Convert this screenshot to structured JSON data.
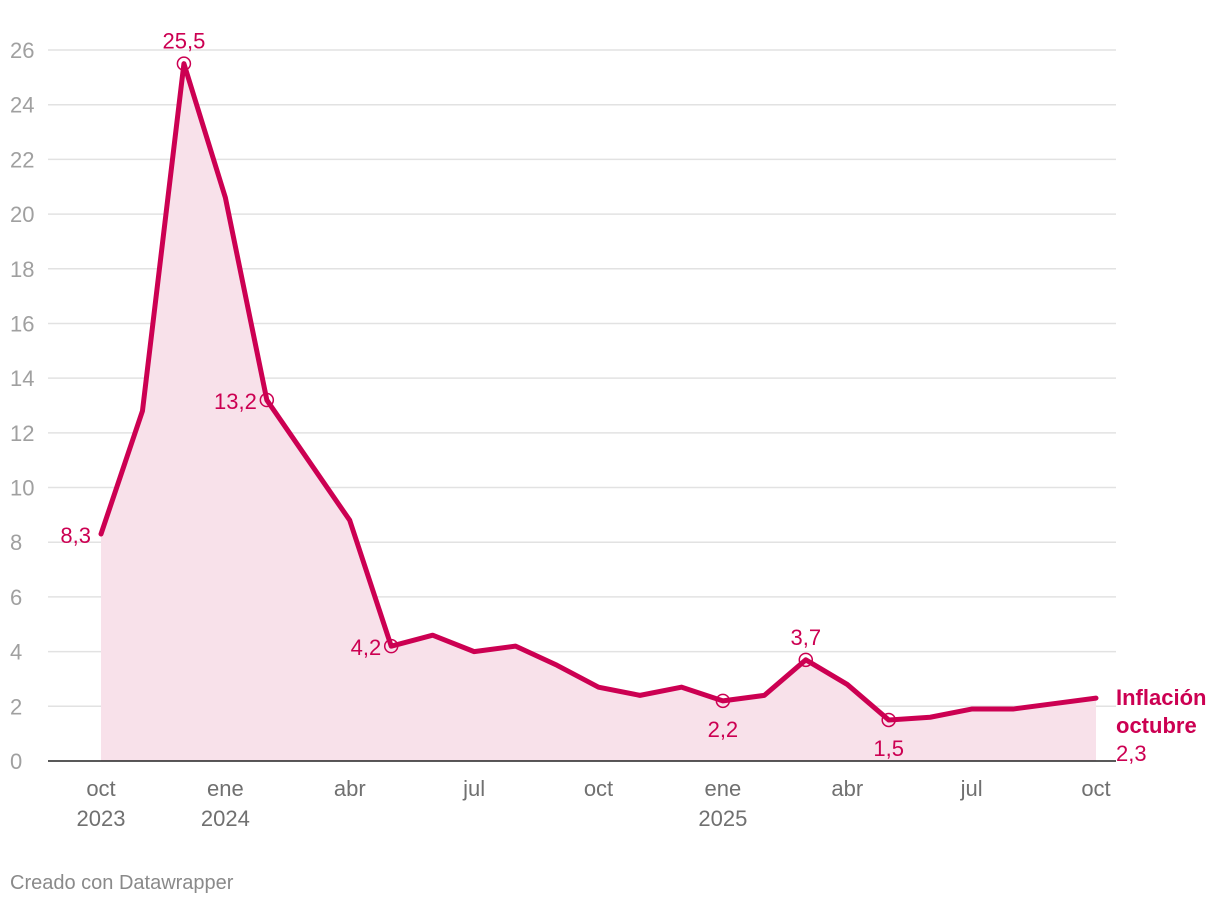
{
  "chart_data": {
    "type": "area",
    "title": "",
    "xlabel": "",
    "ylabel": "",
    "ylim": [
      0,
      26
    ],
    "yticks": [
      0,
      2,
      4,
      6,
      8,
      10,
      12,
      14,
      16,
      18,
      20,
      22,
      24,
      26
    ],
    "grid": true,
    "x_start": "2023-10",
    "x_end": "2025-10",
    "x_tick_labels": [
      {
        "month": "2023-10",
        "line1": "oct",
        "line2": "2023"
      },
      {
        "month": "2024-01",
        "line1": "ene",
        "line2": "2024"
      },
      {
        "month": "2024-04",
        "line1": "abr",
        "line2": ""
      },
      {
        "month": "2024-07",
        "line1": "jul",
        "line2": ""
      },
      {
        "month": "2024-10",
        "line1": "oct",
        "line2": ""
      },
      {
        "month": "2025-01",
        "line1": "ene",
        "line2": "2025"
      },
      {
        "month": "2025-04",
        "line1": "abr",
        "line2": ""
      },
      {
        "month": "2025-07",
        "line1": "jul",
        "line2": ""
      },
      {
        "month": "2025-10",
        "line1": "oct",
        "line2": ""
      }
    ],
    "series": [
      {
        "name": "Inflación octubre",
        "points": [
          {
            "x": "2023-10",
            "y": 8.3
          },
          {
            "x": "2023-11",
            "y": 12.8
          },
          {
            "x": "2023-12",
            "y": 25.5
          },
          {
            "x": "2024-01",
            "y": 20.6
          },
          {
            "x": "2024-02",
            "y": 13.2
          },
          {
            "x": "2024-03",
            "y": 11.0
          },
          {
            "x": "2024-04",
            "y": 8.8
          },
          {
            "x": "2024-05",
            "y": 4.2
          },
          {
            "x": "2024-06",
            "y": 4.6
          },
          {
            "x": "2024-07",
            "y": 4.0
          },
          {
            "x": "2024-08",
            "y": 4.2
          },
          {
            "x": "2024-09",
            "y": 3.5
          },
          {
            "x": "2024-10",
            "y": 2.7
          },
          {
            "x": "2024-11",
            "y": 2.4
          },
          {
            "x": "2024-12",
            "y": 2.7
          },
          {
            "x": "2025-01",
            "y": 2.2
          },
          {
            "x": "2025-02",
            "y": 2.4
          },
          {
            "x": "2025-03",
            "y": 3.7
          },
          {
            "x": "2025-04",
            "y": 2.8
          },
          {
            "x": "2025-05",
            "y": 1.5
          },
          {
            "x": "2025-06",
            "y": 1.6
          },
          {
            "x": "2025-07",
            "y": 1.9
          },
          {
            "x": "2025-08",
            "y": 1.9
          },
          {
            "x": "2025-09",
            "y": 2.1
          },
          {
            "x": "2025-10",
            "y": 2.3
          }
        ]
      }
    ],
    "annotations": [
      {
        "x": "2023-10",
        "y": 8.3,
        "text": "8,3",
        "marker": false,
        "pos": "left"
      },
      {
        "x": "2023-12",
        "y": 25.5,
        "text": "25,5",
        "marker": true,
        "pos": "above"
      },
      {
        "x": "2024-02",
        "y": 13.2,
        "text": "13,2",
        "marker": true,
        "pos": "left"
      },
      {
        "x": "2024-05",
        "y": 4.2,
        "text": "4,2",
        "marker": true,
        "pos": "left"
      },
      {
        "x": "2025-01",
        "y": 2.2,
        "text": "2,2",
        "marker": true,
        "pos": "below"
      },
      {
        "x": "2025-03",
        "y": 3.7,
        "text": "3,7",
        "marker": true,
        "pos": "above"
      },
      {
        "x": "2025-05",
        "y": 1.5,
        "text": "1,5",
        "marker": true,
        "pos": "below"
      }
    ],
    "end_label": {
      "line1": "Inflación",
      "line2": "octubre",
      "value": "2,3"
    },
    "colors": {
      "line": "#cc0052",
      "area": "#f8e1ea",
      "grid": "#e2e2e2",
      "baseline": "#222222"
    }
  },
  "footer": {
    "credit": "Creado con Datawrapper"
  }
}
